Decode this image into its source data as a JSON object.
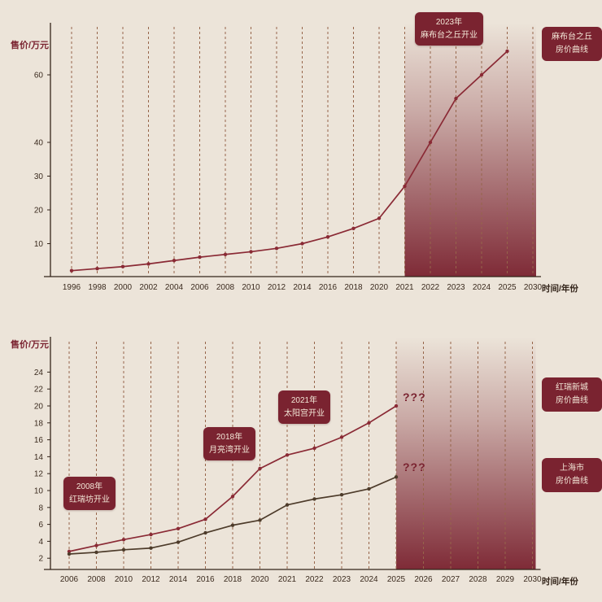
{
  "colors": {
    "background": "#ece4d9",
    "maroon": "#7a2330",
    "line_red": "#8a2a35",
    "line_brown": "#4d3b2a",
    "dash": "#96654a",
    "axis": "#33241a",
    "tick_text": "#3a2a1e",
    "box_text": "#f3e7d7"
  },
  "chart_data": [
    {
      "type": "line",
      "title": "",
      "ylabel": "售价/万元",
      "xlabel": "时间/年份",
      "categories": [
        "1996",
        "1998",
        "2000",
        "2002",
        "2004",
        "2006",
        "2008",
        "2010",
        "2012",
        "2014",
        "2016",
        "2018",
        "2020",
        "2021",
        "2022",
        "2023",
        "2024",
        "2025",
        "2030"
      ],
      "y_ticks": [
        10,
        20,
        30,
        40,
        60
      ],
      "ylim": [
        0,
        70
      ],
      "grid": "vertical-dashed",
      "band_from": "2021",
      "band_to": "2030",
      "series": [
        {
          "name": "麻布台之丘房价曲线",
          "color_key": "line_red",
          "x": [
            "1996",
            "1998",
            "2000",
            "2002",
            "2004",
            "2006",
            "2008",
            "2010",
            "2012",
            "2014",
            "2016",
            "2018",
            "2020",
            "2021",
            "2022",
            "2023",
            "2024",
            "2025"
          ],
          "values": [
            2,
            2.6,
            3.2,
            4,
            5,
            6,
            6.8,
            7.6,
            8.6,
            10,
            12,
            14.5,
            17.5,
            27,
            40,
            53,
            60,
            67
          ]
        }
      ],
      "annotations": [
        {
          "title": "2023年",
          "text": "麻布台之丘开业",
          "anchor": "2023"
        }
      ],
      "side_labels": [
        {
          "line1": "麻布台之丘",
          "line2": "房价曲线"
        }
      ],
      "unknown_markers": []
    },
    {
      "type": "line",
      "title": "",
      "ylabel": "售价/万元",
      "xlabel": "时间/年份",
      "categories": [
        "2006",
        "2008",
        "2010",
        "2012",
        "2014",
        "2016",
        "2018",
        "2020",
        "2021",
        "2022",
        "2023",
        "2024",
        "2025",
        "2026",
        "2027",
        "2028",
        "2029",
        "2030"
      ],
      "y_ticks": [
        2,
        4,
        6,
        8,
        10,
        12,
        14,
        16,
        18,
        20,
        22,
        24
      ],
      "ylim": [
        0,
        25
      ],
      "grid": "vertical-dashed",
      "band_from": "2025",
      "band_to": "2030",
      "series": [
        {
          "name": "红瑞新城房价曲线",
          "color_key": "line_red",
          "x": [
            "2006",
            "2008",
            "2010",
            "2012",
            "2014",
            "2016",
            "2018",
            "2020",
            "2021",
            "2022",
            "2023",
            "2024",
            "2025"
          ],
          "values": [
            2.8,
            3.5,
            4.2,
            4.8,
            5.5,
            6.6,
            9.3,
            12.6,
            14.2,
            15.0,
            16.3,
            18.0,
            20.0
          ]
        },
        {
          "name": "上海市房价曲线",
          "color_key": "line_brown",
          "x": [
            "2006",
            "2008",
            "2010",
            "2012",
            "2014",
            "2016",
            "2018",
            "2020",
            "2021",
            "2022",
            "2023",
            "2024",
            "2025"
          ],
          "values": [
            2.5,
            2.7,
            3.0,
            3.2,
            3.9,
            5.0,
            5.9,
            6.5,
            8.3,
            9.0,
            9.5,
            10.2,
            11.6
          ]
        }
      ],
      "annotations": [
        {
          "title": "2008年",
          "text": "红瑞坊开业",
          "anchor": "2008"
        },
        {
          "title": "2018年",
          "text": "月亮湾开业",
          "anchor": "2018"
        },
        {
          "title": "2021年",
          "text": "太阳宫开业",
          "anchor": "2021"
        }
      ],
      "side_labels": [
        {
          "line1": "红瑞新城",
          "line2": "房价曲线"
        },
        {
          "line1": "上海市",
          "line2": "房价曲线"
        }
      ],
      "unknown_markers": [
        {
          "text": "???"
        },
        {
          "text": "???"
        }
      ]
    }
  ]
}
